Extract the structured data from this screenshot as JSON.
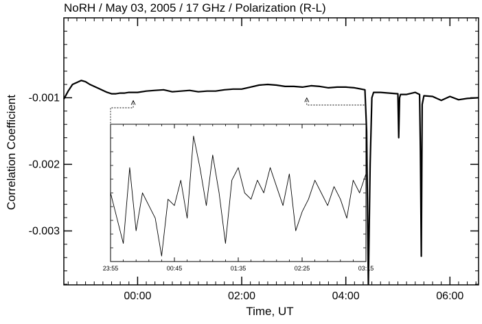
{
  "chart_data": [
    {
      "type": "line",
      "title": "NoRH / May 03, 2005 / 17 GHz / Polarization (R-L)",
      "xlabel": "Time, UT",
      "ylabel": "Correlation Coefficient",
      "x_unit": "minutes relative to 00:00 UT",
      "xlim": [
        -85,
        393
      ],
      "ylim": [
        -0.00381,
        0.0002
      ],
      "x_ticks": [
        0,
        120,
        240,
        360
      ],
      "x_tick_labels": [
        "00:00",
        "02:00",
        "04:00",
        "06:00"
      ],
      "y_ticks": [
        -0.001,
        -0.002,
        -0.003
      ],
      "y_tick_labels": [
        "-0.001",
        "-0.002",
        "-0.003"
      ],
      "grid": false,
      "series": [
        {
          "x": [
            -85,
            -80,
            -75,
            -70,
            -65,
            -60,
            -55,
            -50,
            -45,
            -40,
            -35,
            -30,
            -25,
            -20,
            -15,
            -10,
            -5,
            0,
            10,
            20,
            30,
            40,
            50,
            60,
            70,
            80,
            90,
            100,
            110,
            120,
            130,
            140,
            150,
            160,
            170,
            180,
            190,
            200,
            210,
            220,
            230,
            240,
            250,
            262,
            264,
            266,
            268,
            270,
            272,
            280,
            300,
            301,
            302,
            303,
            310,
            320,
            325,
            326,
            327,
            328,
            330,
            340,
            350,
            360,
            370,
            380,
            393
          ],
          "y": [
            -0.00102,
            -0.0009,
            -0.0008,
            -0.00077,
            -0.00074,
            -0.00076,
            -0.0008,
            -0.00083,
            -0.00086,
            -0.00089,
            -0.00092,
            -0.00094,
            -0.00094,
            -0.00093,
            -0.00093,
            -0.00092,
            -0.00092,
            -0.00092,
            -0.0009,
            -0.00089,
            -0.00088,
            -0.00091,
            -0.0009,
            -0.00089,
            -0.00091,
            -0.0009,
            -0.0009,
            -0.00088,
            -0.00087,
            -0.00087,
            -0.00084,
            -0.00081,
            -0.0008,
            -0.00081,
            -0.00083,
            -0.00083,
            -0.00084,
            -0.00082,
            -0.00083,
            -0.00085,
            -0.00084,
            -0.00084,
            -0.00085,
            -0.00088,
            -0.0015,
            -0.0038,
            -0.002,
            -0.001,
            -0.00092,
            -0.00092,
            -0.00094,
            -0.0016,
            -0.001,
            -0.00095,
            -0.00095,
            -0.00092,
            -0.00095,
            -0.0018,
            -0.00338,
            -0.0011,
            -0.00097,
            -0.00098,
            -0.00104,
            -0.00098,
            -0.00103,
            -0.00101,
            -0.001
          ]
        }
      ]
    },
    {
      "type": "line",
      "role": "inset",
      "x_ticks": [
        -5,
        45,
        95,
        145,
        195
      ],
      "x_tick_labels": [
        "23:55",
        "00:45",
        "01:35",
        "02:25",
        "03:15"
      ],
      "series": [
        {
          "x": [
            -5,
            0,
            5,
            10,
            15,
            20,
            25,
            30,
            35,
            40,
            45,
            50,
            55,
            60,
            65,
            70,
            75,
            80,
            85,
            90,
            95,
            100,
            105,
            110,
            115,
            120,
            125,
            130,
            135,
            140,
            145,
            150,
            155,
            160,
            165,
            170,
            175,
            180,
            185,
            190,
            195
          ],
          "y": [
            0.5,
            0.3,
            0.1,
            0.7,
            0.2,
            0.5,
            0.4,
            0.3,
            0.0,
            0.45,
            0.4,
            0.6,
            0.3,
            0.95,
            0.7,
            0.4,
            0.8,
            0.5,
            0.1,
            0.6,
            0.7,
            0.5,
            0.45,
            0.6,
            0.5,
            0.7,
            0.55,
            0.4,
            0.65,
            0.2,
            0.35,
            0.45,
            0.6,
            0.5,
            0.4,
            0.55,
            0.45,
            0.3,
            0.6,
            0.5,
            0.65
          ]
        }
      ]
    }
  ]
}
